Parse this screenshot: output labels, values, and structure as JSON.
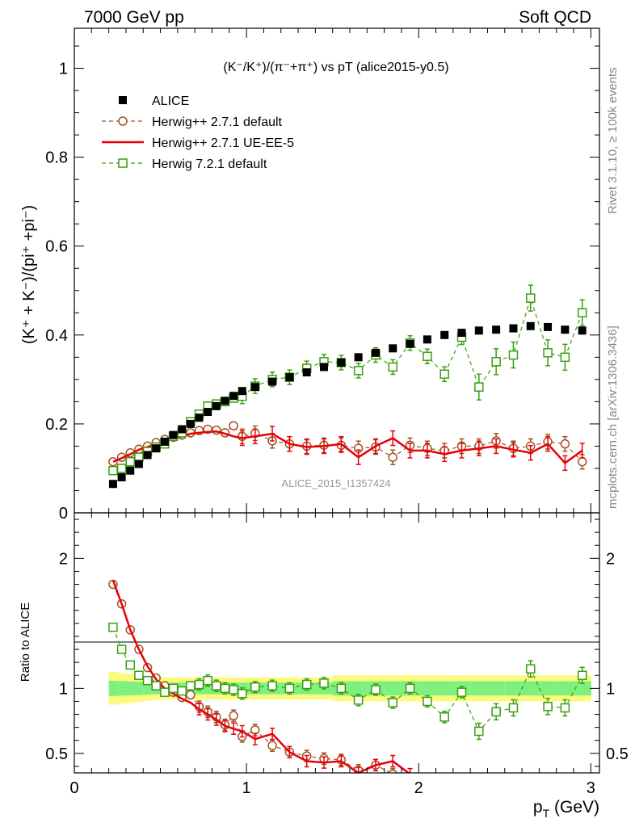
{
  "header": {
    "left": "7000 GeV pp",
    "right": "Soft QCD"
  },
  "side_texts": {
    "rivet": "Rivet 3.1.10, ≥ 100k events",
    "mcplots": "mcplots.cern.ch [arXiv:1306.3436]"
  },
  "chart_data": [
    {
      "type": "scatter",
      "panel": "main",
      "title": "(K⁻/K⁺)/(π⁻+π⁺) vs pT (alice2015-y0.5)",
      "ylabel": "(K⁺ + K⁻)/(pi⁺ +pi⁻)",
      "xlabel": "p_T (GeV)",
      "watermark": "ALICE_2015_I1357424",
      "xlim": [
        0,
        3.05
      ],
      "ylim": [
        0,
        1.09
      ],
      "xticks": [
        "0",
        "1",
        "2",
        "3"
      ],
      "yticks": [
        "0",
        "0.2",
        "0.4",
        "0.6",
        "0.8",
        "1"
      ],
      "legend_position": "top-left",
      "series": [
        {
          "name": "ALICE",
          "color": "#000000",
          "marker": "filled-square",
          "x": [
            0.225,
            0.275,
            0.325,
            0.375,
            0.425,
            0.475,
            0.525,
            0.575,
            0.625,
            0.675,
            0.725,
            0.775,
            0.825,
            0.875,
            0.925,
            0.975,
            1.05,
            1.15,
            1.25,
            1.35,
            1.45,
            1.55,
            1.65,
            1.75,
            1.85,
            1.95,
            2.05,
            2.15,
            2.25,
            2.35,
            2.45,
            2.55,
            2.65,
            2.75,
            2.85,
            2.95
          ],
          "y": [
            0.065,
            0.08,
            0.095,
            0.11,
            0.13,
            0.145,
            0.16,
            0.175,
            0.188,
            0.2,
            0.214,
            0.227,
            0.24,
            0.252,
            0.263,
            0.274,
            0.283,
            0.295,
            0.305,
            0.316,
            0.328,
            0.338,
            0.35,
            0.36,
            0.37,
            0.38,
            0.39,
            0.4,
            0.405,
            0.41,
            0.412,
            0.415,
            0.42,
            0.418,
            0.412,
            0.41
          ]
        },
        {
          "name": "Herwig++ 2.7.1 default",
          "color": "#a0521e",
          "marker": "open-circle",
          "line": "dashed",
          "x": [
            0.225,
            0.275,
            0.325,
            0.375,
            0.425,
            0.475,
            0.525,
            0.575,
            0.625,
            0.675,
            0.725,
            0.775,
            0.825,
            0.875,
            0.925,
            0.975,
            1.05,
            1.15,
            1.25,
            1.35,
            1.45,
            1.55,
            1.65,
            1.75,
            1.85,
            1.95,
            2.05,
            2.15,
            2.25,
            2.35,
            2.45,
            2.55,
            2.65,
            2.75,
            2.85,
            2.95
          ],
          "y": [
            0.115,
            0.125,
            0.135,
            0.143,
            0.15,
            0.158,
            0.165,
            0.17,
            0.175,
            0.18,
            0.185,
            0.188,
            0.186,
            0.18,
            0.196,
            0.172,
            0.179,
            0.162,
            0.155,
            0.15,
            0.152,
            0.152,
            0.145,
            0.148,
            0.125,
            0.152,
            0.145,
            0.14,
            0.15,
            0.15,
            0.162,
            0.145,
            0.15,
            0.16,
            0.155,
            0.115
          ]
        },
        {
          "name": "Herwig++ 2.7.1 UE-EE-5",
          "color": "#e8000b",
          "marker": "none",
          "line": "solid",
          "x": [
            0.225,
            0.275,
            0.325,
            0.375,
            0.425,
            0.475,
            0.525,
            0.575,
            0.625,
            0.675,
            0.725,
            0.775,
            0.825,
            0.875,
            0.925,
            0.975,
            1.05,
            1.15,
            1.25,
            1.35,
            1.45,
            1.55,
            1.65,
            1.75,
            1.85,
            1.95,
            2.05,
            2.15,
            2.25,
            2.35,
            2.45,
            2.55,
            2.65,
            2.75,
            2.85,
            2.95
          ],
          "y": [
            0.115,
            0.123,
            0.132,
            0.142,
            0.148,
            0.155,
            0.16,
            0.168,
            0.172,
            0.178,
            0.18,
            0.182,
            0.183,
            0.178,
            0.172,
            0.168,
            0.172,
            0.178,
            0.155,
            0.148,
            0.15,
            0.155,
            0.125,
            0.15,
            0.168,
            0.14,
            0.14,
            0.132,
            0.14,
            0.145,
            0.15,
            0.142,
            0.135,
            0.155,
            0.112,
            0.14
          ]
        },
        {
          "name": "Herwig 7.2.1 default",
          "color": "#3a9e0e",
          "marker": "open-square",
          "line": "dashed",
          "x": [
            0.225,
            0.275,
            0.325,
            0.375,
            0.425,
            0.475,
            0.525,
            0.575,
            0.625,
            0.675,
            0.725,
            0.775,
            0.825,
            0.875,
            0.925,
            0.975,
            1.05,
            1.15,
            1.25,
            1.35,
            1.45,
            1.55,
            1.65,
            1.75,
            1.85,
            1.95,
            2.05,
            2.15,
            2.25,
            2.35,
            2.45,
            2.55,
            2.65,
            2.75,
            2.85,
            2.95
          ],
          "y": [
            0.095,
            0.1,
            0.115,
            0.125,
            0.138,
            0.148,
            0.155,
            0.172,
            0.18,
            0.205,
            0.222,
            0.24,
            0.245,
            0.25,
            0.258,
            0.262,
            0.285,
            0.3,
            0.305,
            0.325,
            0.34,
            0.338,
            0.32,
            0.355,
            0.328,
            0.382,
            0.352,
            0.312,
            0.395,
            0.283,
            0.34,
            0.355,
            0.483,
            0.36,
            0.35,
            0.45
          ]
        }
      ]
    },
    {
      "type": "line",
      "panel": "ratio",
      "ylabel": "Ratio to ALICE",
      "xlim": [
        0,
        3.05
      ],
      "ylim": [
        0.35,
        2.35
      ],
      "yticks": [
        "0.5",
        "1",
        "2"
      ],
      "reference_line": 1,
      "band_colors": {
        "inner": "#7ef07e",
        "outer": "#fbfb7e"
      },
      "series": [
        {
          "name": "Herwig++ 2.7.1 default",
          "color": "#a0521e",
          "x": [
            0.225,
            0.275,
            0.325,
            0.375,
            0.425,
            0.475,
            0.525,
            0.575,
            0.625,
            0.675,
            0.725,
            0.775,
            0.825,
            0.875,
            0.925,
            0.975,
            1.05,
            1.15,
            1.25,
            1.35,
            1.45,
            1.55,
            1.65,
            1.75,
            1.85
          ],
          "y": [
            1.8,
            1.65,
            1.45,
            1.3,
            1.16,
            1.08,
            1.02,
            0.97,
            0.93,
            0.95,
            0.86,
            0.82,
            0.78,
            0.72,
            0.79,
            0.63,
            0.68,
            0.56,
            0.51,
            0.48,
            0.46,
            0.45,
            0.37,
            0.41,
            0.34
          ]
        },
        {
          "name": "Herwig++ 2.7.1 UE-EE-5",
          "color": "#e8000b",
          "x": [
            0.225,
            0.275,
            0.325,
            0.375,
            0.425,
            0.475,
            0.525,
            0.575,
            0.625,
            0.675,
            0.725,
            0.775,
            0.825,
            0.875,
            0.925,
            0.975,
            1.05,
            1.15,
            1.25,
            1.35,
            1.45,
            1.55,
            1.65,
            1.75,
            1.85,
            1.95
          ],
          "y": [
            1.83,
            1.65,
            1.45,
            1.3,
            1.17,
            1.07,
            1.0,
            0.96,
            0.92,
            0.89,
            0.84,
            0.8,
            0.76,
            0.71,
            0.69,
            0.67,
            0.61,
            0.65,
            0.51,
            0.44,
            0.43,
            0.44,
            0.35,
            0.41,
            0.44,
            0.34
          ]
        },
        {
          "name": "Herwig 7.2.1 default",
          "color": "#3a9e0e",
          "x": [
            0.225,
            0.275,
            0.325,
            0.375,
            0.425,
            0.475,
            0.525,
            0.575,
            0.625,
            0.675,
            0.725,
            0.775,
            0.825,
            0.875,
            0.925,
            0.975,
            1.05,
            1.15,
            1.25,
            1.35,
            1.45,
            1.55,
            1.65,
            1.75,
            1.85,
            1.95,
            2.05,
            2.15,
            2.25,
            2.35,
            2.45,
            2.55,
            2.65,
            2.75,
            2.85,
            2.95
          ],
          "y": [
            1.47,
            1.3,
            1.18,
            1.1,
            1.06,
            1.02,
            0.97,
            1.0,
            0.98,
            1.02,
            1.03,
            1.06,
            1.02,
            1.0,
            0.99,
            0.96,
            1.01,
            1.02,
            1.0,
            1.03,
            1.04,
            1.0,
            0.91,
            0.99,
            0.89,
            1.0,
            0.9,
            0.78,
            0.97,
            0.67,
            0.82,
            0.85,
            1.15,
            0.86,
            0.85,
            1.1
          ]
        }
      ]
    }
  ]
}
